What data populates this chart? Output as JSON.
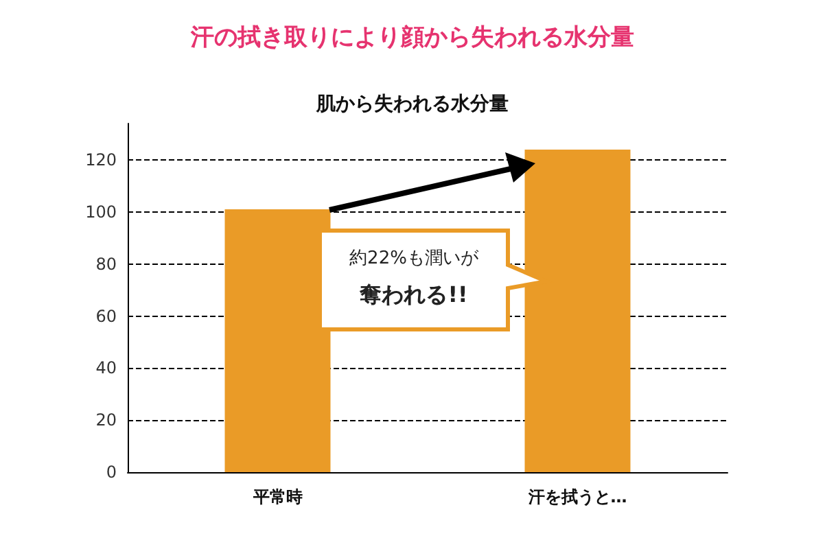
{
  "chart_data": {
    "type": "bar",
    "title": "汗の拭き取りにより顔から失われる水分量",
    "subtitle": "肌から失われる水分量",
    "categories": [
      "平常時",
      "汗を拭うと…"
    ],
    "values": [
      101,
      124
    ],
    "color": "#ea9b27",
    "ylim": [
      0,
      134
    ],
    "yticks": [
      0,
      20,
      40,
      60,
      80,
      100,
      120
    ],
    "grid": "y",
    "annotations": [
      "約22%も潤いが",
      "奪われる!!"
    ]
  }
}
